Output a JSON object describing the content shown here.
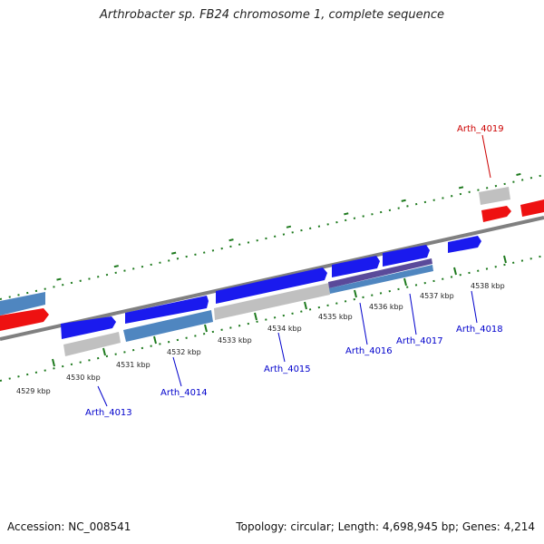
{
  "title": "Arthrobacter sp. FB24 chromosome 1, complete sequence",
  "footer": {
    "accession": "Accession: NC_008541",
    "summary": "Topology: circular; Length: 4,698,945 bp; Genes: 4,214"
  },
  "colors": {
    "forward_cds": "#1a1aee",
    "reverse_cds": "#4f86c0",
    "rna": "#ee1111",
    "pseudo": "#c0c0c0",
    "overlap": "#5a4a9a",
    "backbone": "#808080",
    "ticks": "#1e7a1e",
    "locus_label": "#0000cc",
    "rna_label": "#cc0000"
  },
  "scale_labels": [
    "4529 kbp",
    "4530 kbp",
    "4531 kbp",
    "4532 kbp",
    "4533 kbp",
    "4534 kbp",
    "4535 kbp",
    "4536 kbp",
    "4537 kbp",
    "4538 kbp"
  ],
  "gene_labels": [
    "Arth_4013",
    "Arth_4014",
    "Arth_4015",
    "Arth_4016",
    "Arth_4017",
    "Arth_4018",
    "Arth_4019"
  ]
}
